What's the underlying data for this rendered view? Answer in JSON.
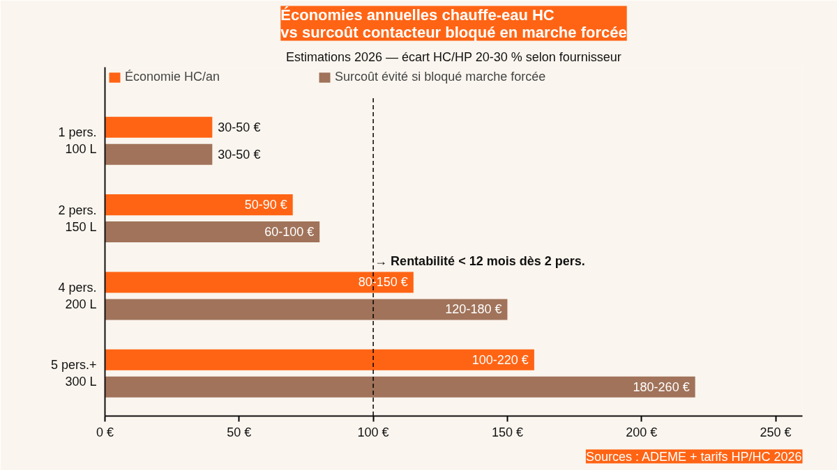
{
  "chart_data": {
    "type": "bar",
    "orientation": "horizontal",
    "title": "Économies annuelles chauffe-eau HC\nvs surcoût contacteur bloqué en marche forcée",
    "subtitle": "Estimations 2026 — écart HC/HP 20-30 % selon fournisseur",
    "categories": [
      "1 pers.\n100 L",
      "2 pers.\n150 L",
      "4 pers.\n200 L",
      "5 pers.+\n300 L"
    ],
    "series": [
      {
        "name": "Économie HC/an",
        "color": "#ff6414",
        "values": [
          40,
          70,
          115,
          160
        ],
        "value_labels": [
          "30-50 €",
          "50-90 €",
          "80-150 €",
          "100-220 €"
        ]
      },
      {
        "name": "Surcoût évité si bloqué marche forcée",
        "color": "#a0735a",
        "values": [
          40,
          80,
          150,
          220
        ],
        "value_labels": [
          "30-50 €",
          "60-100 €",
          "120-180 €",
          "180-260 €"
        ]
      }
    ],
    "xlim": [
      0,
      260
    ],
    "xticks": [
      {
        "value": 0,
        "label": "0 €"
      },
      {
        "value": 50,
        "label": "50 €"
      },
      {
        "value": 100,
        "label": "100 €"
      },
      {
        "value": 150,
        "label": "150 €"
      },
      {
        "value": 200,
        "label": "200 €"
      },
      {
        "value": 250,
        "label": "250 €"
      }
    ],
    "ref_lines": [
      {
        "axis": "x",
        "value": 100,
        "label": "→ Rentabilité < 12 mois dès 2 pers.",
        "color": "#000000",
        "line_style": "dashed"
      }
    ],
    "annotations": [
      "Sources : ADEME + tarifs HP/HC 2026"
    ],
    "legend": "top",
    "grid": false
  }
}
